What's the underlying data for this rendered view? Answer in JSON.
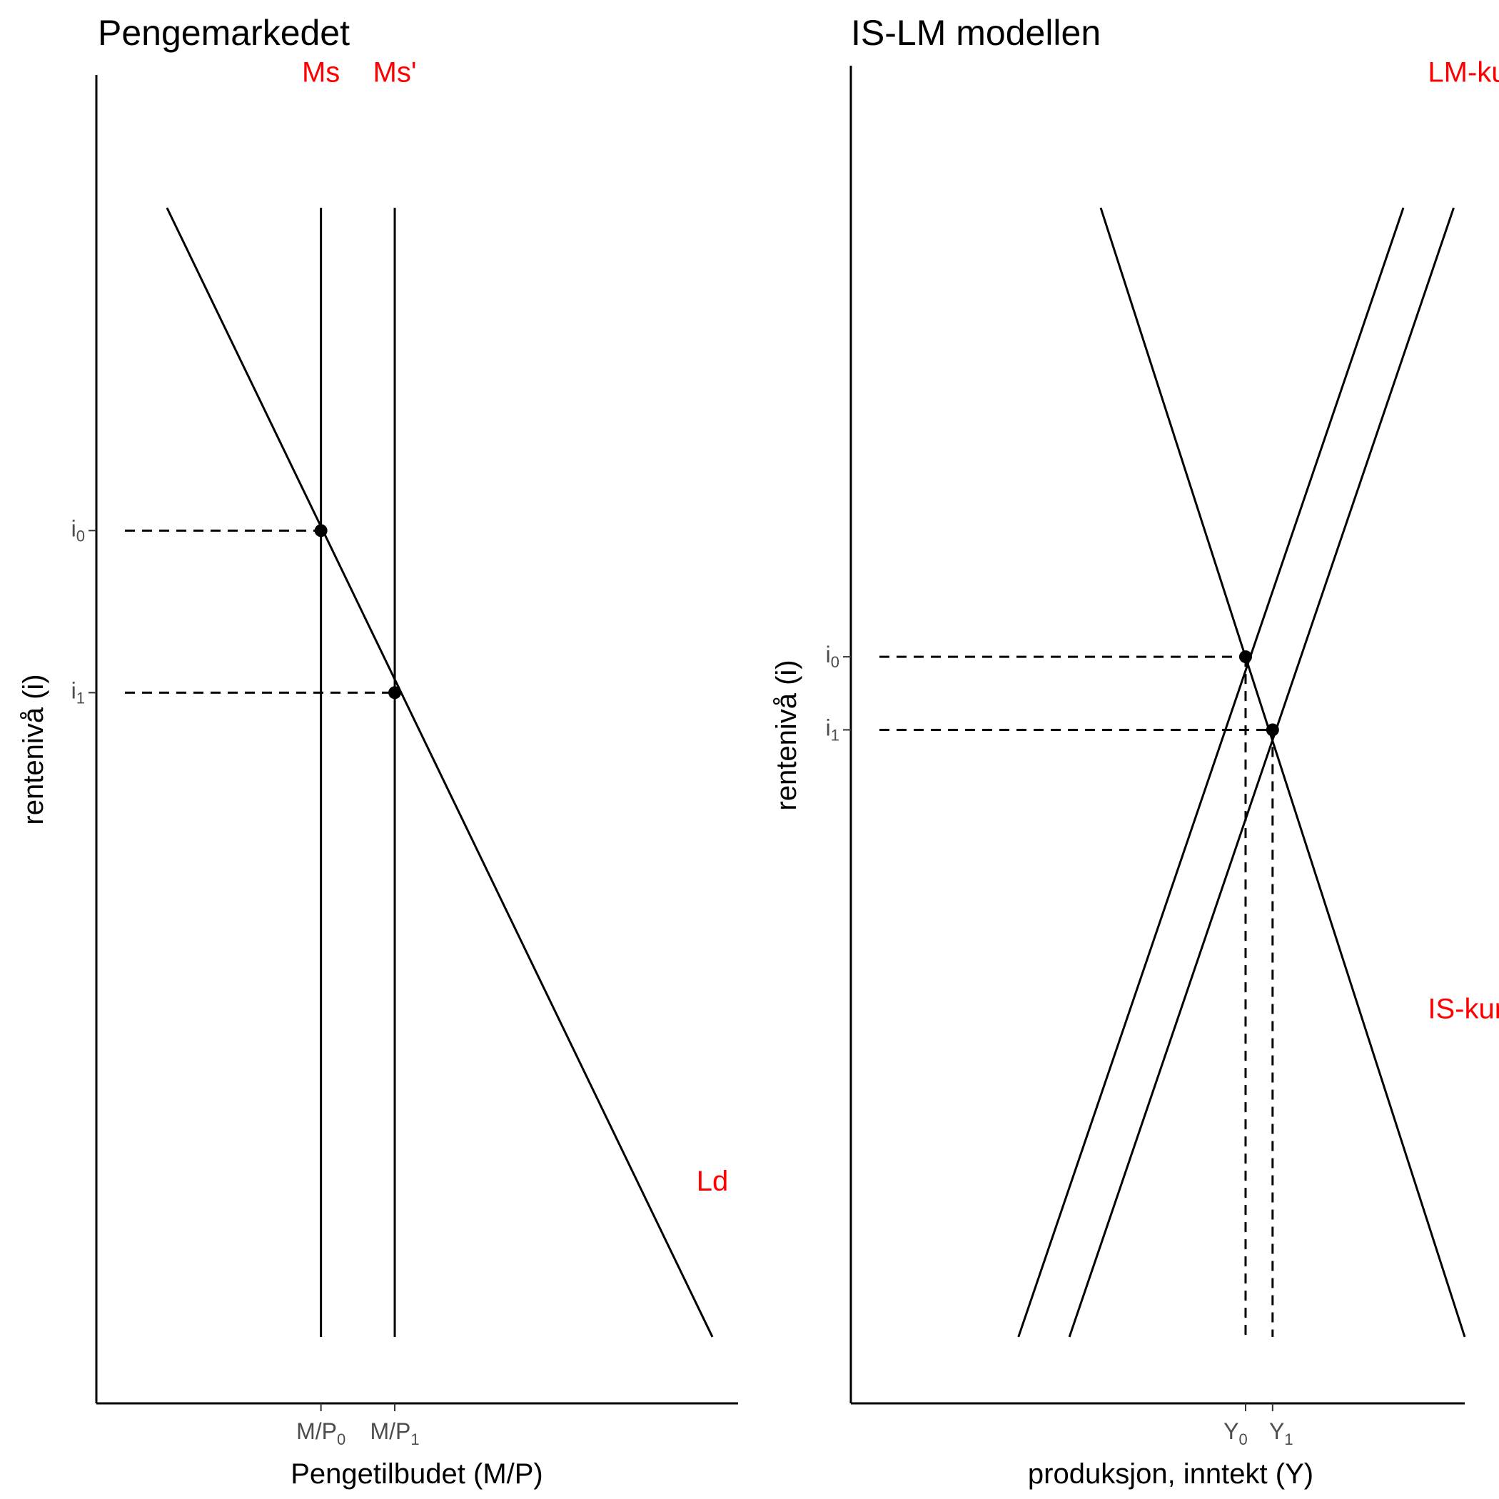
{
  "chart_data": [
    {
      "type": "line",
      "title": "Pengemarkedet",
      "xlabel": "Pengetilbudet (M/P)",
      "ylabel": "rentenivå (i)",
      "xlim": [
        0,
        10
      ],
      "ylim": [
        0,
        10
      ],
      "label_color": "#ff0000",
      "series": [
        {
          "name": "Ms",
          "x": [
            3.5,
            3.5
          ],
          "y": [
            0.5,
            9.0
          ]
        },
        {
          "name": "Ms'",
          "x": [
            4.65,
            4.65
          ],
          "y": [
            0.5,
            9.0
          ]
        },
        {
          "name": "Ld",
          "x": [
            1.1,
            9.6
          ],
          "y": [
            9.0,
            0.5
          ]
        }
      ],
      "guides": {
        "hlines": [
          {
            "y": 6.57,
            "x_end": 3.5
          },
          {
            "y": 5.35,
            "x_end": 4.65
          }
        ]
      },
      "points": [
        {
          "x": 3.5,
          "y": 6.57
        },
        {
          "x": 4.65,
          "y": 5.35
        }
      ],
      "series_labels": [
        {
          "text": "Ms",
          "x": 3.5,
          "y": 9.95
        },
        {
          "text": "Ms'",
          "x": 4.65,
          "y": 9.95
        },
        {
          "text": "Ld",
          "x": 9.6,
          "y": 1.6
        }
      ],
      "x_ticks": [
        {
          "value": 3.5,
          "base": "M/P",
          "sub": "0"
        },
        {
          "value": 4.65,
          "base": "M/P",
          "sub": "1"
        }
      ],
      "y_ticks": [
        {
          "value": 6.57,
          "base": "i",
          "sub": "0"
        },
        {
          "value": 5.35,
          "base": "i",
          "sub": "1"
        }
      ]
    },
    {
      "type": "line",
      "title": "IS-LM modellen",
      "xlabel": "produksjon, inntekt (Y)",
      "ylabel": "rentenivå (i)",
      "xlim": [
        0,
        10
      ],
      "ylim": [
        0,
        10
      ],
      "label_color": "#ff0000",
      "series": [
        {
          "name": "IS-kurven",
          "x": [
            4.07,
            10.0
          ],
          "y": [
            9.0,
            0.5
          ]
        },
        {
          "name": "LM-kurven",
          "x": [
            2.73,
            9.0
          ],
          "y": [
            0.5,
            9.0
          ]
        },
        {
          "name": "LM-kurven",
          "x": [
            3.56,
            9.82
          ],
          "y": [
            0.5,
            9.0
          ]
        }
      ],
      "guides": {
        "hlines": [
          {
            "y": 5.62,
            "x_end": 6.43
          },
          {
            "y": 5.07,
            "x_end": 6.87
          }
        ],
        "vlines": [
          {
            "x": 6.43,
            "y_end": 5.62
          },
          {
            "x": 6.87,
            "y_end": 5.07
          }
        ]
      },
      "points": [
        {
          "x": 6.43,
          "y": 5.62
        },
        {
          "x": 6.87,
          "y": 5.07
        }
      ],
      "series_labels": [
        {
          "text": "LM-kurven",
          "x": 9.4,
          "y": 9.95
        },
        {
          "text": "IS-kurven",
          "x": 9.4,
          "y": 2.9
        }
      ],
      "x_ticks": [
        {
          "value": 6.43,
          "base": "Y",
          "sub": "0"
        },
        {
          "value": 6.87,
          "base": "Y",
          "sub": "1"
        }
      ],
      "y_ticks": [
        {
          "value": 5.62,
          "base": "i",
          "sub": "0"
        },
        {
          "value": 5.07,
          "base": "i",
          "sub": "1"
        }
      ]
    }
  ]
}
